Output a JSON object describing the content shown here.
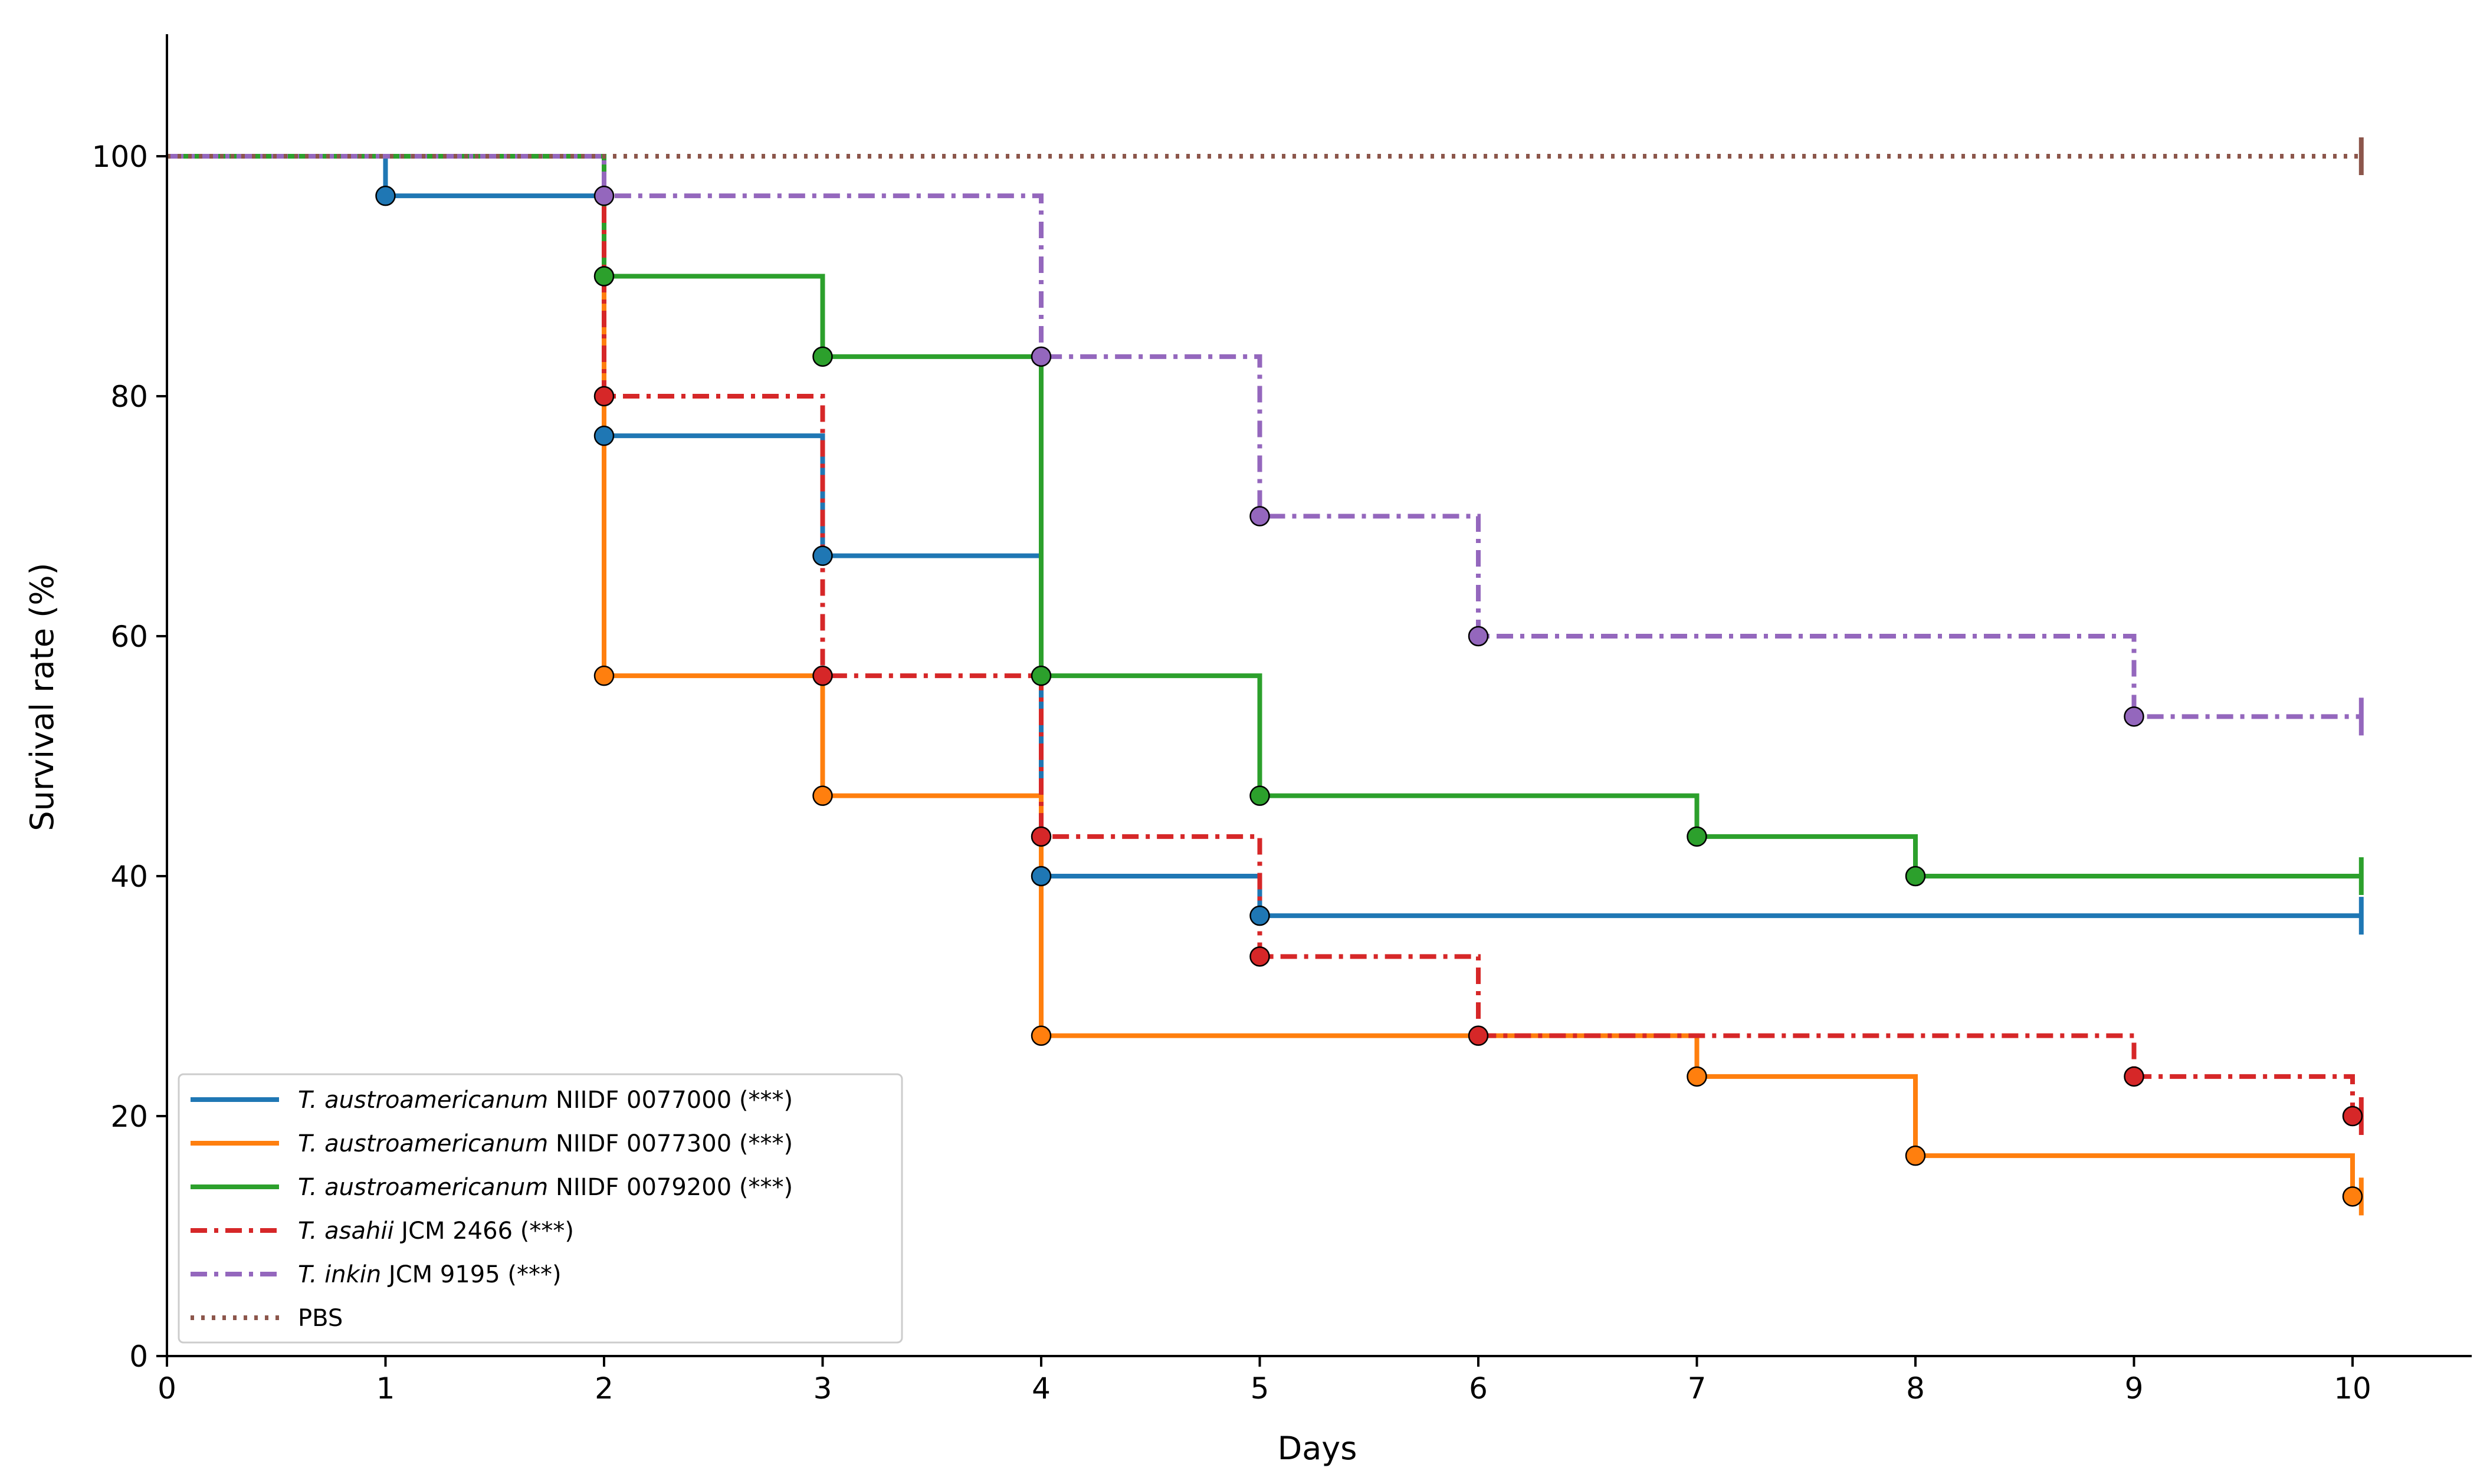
{
  "chart_data": {
    "type": "line",
    "subtype": "kaplan-meier step",
    "title": "",
    "xlabel": "Days",
    "ylabel": "Survival rate (%)",
    "xlim": [
      0,
      10.5
    ],
    "ylim": [
      0,
      110
    ],
    "xticks": [
      0,
      1,
      2,
      3,
      4,
      5,
      6,
      7,
      8,
      9,
      10
    ],
    "yticks": [
      0,
      20,
      40,
      60,
      80,
      100
    ],
    "grid": false,
    "legend_position": "bottom-left",
    "end_x": 10.04,
    "series": [
      {
        "name": "T. austroamericanum NIIDF 0077000 (***)",
        "species": "T.  austroamericanum",
        "strain": "NIIDF 0077000 (***)",
        "color": "#1f77b4",
        "linestyle": "solid",
        "x": [
          0,
          1,
          2,
          3,
          4,
          5
        ],
        "y": [
          100,
          96.7,
          76.7,
          66.7,
          40.0,
          36.7
        ],
        "end": 36.7
      },
      {
        "name": "T. austroamericanum NIIDF 0077300 (***)",
        "species": "T.  austroamericanum",
        "strain": "NIIDF 0077300 (***)",
        "color": "#ff7f0e",
        "linestyle": "solid",
        "x": [
          0,
          2,
          3,
          4,
          7,
          8,
          10
        ],
        "y": [
          100,
          56.7,
          46.7,
          26.7,
          23.3,
          16.7,
          13.3
        ],
        "end": 13.3
      },
      {
        "name": "T. austroamericanum NIIDF 0079200 (***)",
        "species": "T.  austroamericanum",
        "strain": "NIIDF 0079200 (***)",
        "color": "#2ca02c",
        "linestyle": "solid",
        "x": [
          0,
          2,
          3,
          4,
          5,
          7,
          8
        ],
        "y": [
          100,
          90.0,
          83.3,
          56.7,
          46.7,
          43.3,
          40.0
        ],
        "end": 40.0
      },
      {
        "name": "T. asahii JCM 2466 (***)",
        "species": "T.  asahii",
        "strain": "JCM 2466 (***)",
        "color": "#d62728",
        "linestyle": "dashdot",
        "x": [
          0,
          2,
          3,
          4,
          5,
          6,
          9,
          10
        ],
        "y": [
          100,
          80.0,
          56.7,
          43.3,
          33.3,
          26.7,
          23.3,
          20.0
        ],
        "end": 20.0
      },
      {
        "name": "T. inkin JCM 9195 (***)",
        "species": "T.  inkin",
        "strain": "JCM 9195 (***)",
        "color": "#9467bd",
        "linestyle": "dashdot",
        "x": [
          0,
          2,
          4,
          5,
          6,
          9
        ],
        "y": [
          100,
          96.7,
          83.3,
          70.0,
          60.0,
          53.3
        ],
        "end": 53.3
      },
      {
        "name": "PBS",
        "species": "",
        "strain": "PBS",
        "color": "#8c564b",
        "linestyle": "dotted",
        "x": [
          0
        ],
        "y": [
          100
        ],
        "end": 100
      }
    ]
  }
}
